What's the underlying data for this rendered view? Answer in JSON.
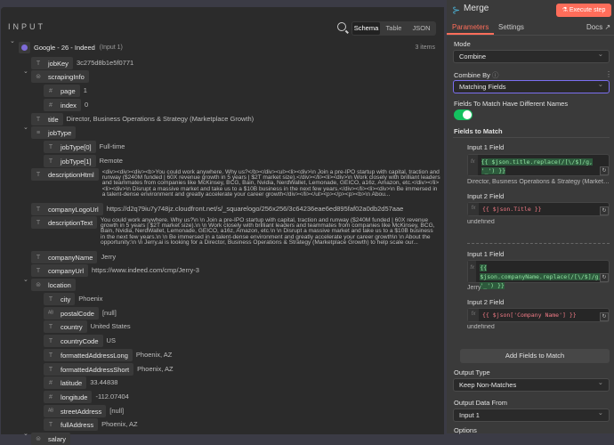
{
  "input": {
    "title": "INPUT",
    "views": [
      "Schema",
      "Table",
      "JSON"
    ],
    "active_view": "Schema",
    "source": {
      "name": "Google - 26 - Indeed",
      "tag": "(Input 1)",
      "count": "3 items"
    },
    "fields": [
      {
        "key": "jobKey",
        "type": "T",
        "value": "3c275d8b1e5f0771",
        "depth": 0
      },
      {
        "key": "scrapingInfo",
        "type": "obj",
        "value": "",
        "depth": 0,
        "expanded": true
      },
      {
        "key": "page",
        "type": "#",
        "value": "1",
        "depth": 1
      },
      {
        "key": "index",
        "type": "#",
        "value": "0",
        "depth": 1
      },
      {
        "key": "title",
        "type": "T",
        "value": "Director, Business Operations & Strategy (Marketplace Growth)",
        "depth": 0
      },
      {
        "key": "jobType",
        "type": "arr",
        "value": "",
        "depth": 0,
        "expanded": true
      },
      {
        "key": "jobType[0]",
        "type": "T",
        "value": "Full-time",
        "depth": 1
      },
      {
        "key": "jobType[1]",
        "type": "T",
        "value": "Remote",
        "depth": 1
      },
      {
        "key": "descriptionHtml",
        "type": "T",
        "value": "<div><div><div><b>You could work anywhere. Why us?</b></div><ul><li><div>\\n Join a pre-IPO startup with capital, traction and runway ($240M funded | 60X revenue growth in 5 years | $2T market size).</div></li><li><div>\\n Work closely with brilliant leaders and teammates from companies like McKinsey, BCG, Bain, Nvidia, NerdWallet, Lemonade, GEICO, a16z, Amazon, etc.</div></li><li><div>\\n Disrupt a massive market and take us to a $10B business in the next few years.</div></li><li><div>\\n Be immersed in a talent-dense environment and greatly accelerate your career growth</div></li></ul><p></p><p><b>\\n Abou...",
        "depth": 0
      },
      {
        "key": "companyLogoUrl",
        "type": "T",
        "value": "https://d2q79iu7y748jz.cloudfront.net/s/_squarelogo/256x256/3c64236eae6ed895faf02a0db2d57aae",
        "depth": 0
      },
      {
        "key": "descriptionText",
        "type": "T",
        "value": "You could work anywhere. Why us?\\n \\n Join a pre-IPO startup with capital, traction and runway ($240M funded | 60X revenue growth in 5 years | $2T market size).\\n \\n Work closely with brilliant leaders and teammates from companies like McKinsey, BCG, Bain, Nvidia, NerdWallet, Lemonade, GEICO, a16z, Amazon, etc.\\n \\n Disrupt a massive market and take us to a $10B business in the next few years.\\n \\n Be immersed in a talent-dense environment and greatly accelerate your career growth\\n \\n About the opportunity:\\n \\n Jerry.ai is looking for a Director, Business Operations & Strategy (Marketplace Growth) to help scale our...",
        "depth": 0
      },
      {
        "key": "companyName",
        "type": "T",
        "value": "Jerry",
        "depth": 0
      },
      {
        "key": "companyUrl",
        "type": "T",
        "value": "https://www.indeed.com/cmp/Jerry-3",
        "depth": 0
      },
      {
        "key": "location",
        "type": "obj",
        "value": "",
        "depth": 0,
        "expanded": true
      },
      {
        "key": "city",
        "type": "T",
        "value": "Phoenix",
        "depth": 1
      },
      {
        "key": "postalCode",
        "type": "AB",
        "value": "[null]",
        "depth": 1
      },
      {
        "key": "country",
        "type": "T",
        "value": "United States",
        "depth": 1
      },
      {
        "key": "countryCode",
        "type": "T",
        "value": "US",
        "depth": 1
      },
      {
        "key": "formattedAddressLong",
        "type": "T",
        "value": "Phoenix, AZ",
        "depth": 1
      },
      {
        "key": "formattedAddressShort",
        "type": "T",
        "value": "Phoenix, AZ",
        "depth": 1
      },
      {
        "key": "latitude",
        "type": "#",
        "value": "33.44838",
        "depth": 1
      },
      {
        "key": "longitude",
        "type": "#",
        "value": "-112.07404",
        "depth": 1
      },
      {
        "key": "streetAddress",
        "type": "AB",
        "value": "[null]",
        "depth": 1
      },
      {
        "key": "fullAddress",
        "type": "T",
        "value": "Phoenix, AZ",
        "depth": 1
      },
      {
        "key": "salary",
        "type": "obj",
        "value": "",
        "depth": 0,
        "expanded": true
      }
    ]
  },
  "node": {
    "title": "Merge",
    "execute_label": "Execute step",
    "tabs": [
      "Parameters",
      "Settings"
    ],
    "active_tab": "Parameters",
    "docs_label": "Docs",
    "mode": {
      "label": "Mode",
      "value": "Combine"
    },
    "combine_by": {
      "label": "Combine By",
      "value": "Matching Fields"
    },
    "different_names": {
      "label": "Fields To Match Have Different Names",
      "enabled": true
    },
    "fields_to_match": {
      "label": "Fields to Match",
      "pairs": [
        {
          "input1_label": "Input 1 Field",
          "input1_expr": "{{ $json.title.replace(/[\\/$]/g, '_') }}",
          "input1_result": "Director, Business Operations & Strategy (Marketplace Growth)",
          "input2_label": "Input 2 Field",
          "input2_expr": "{{ $json.Title }}",
          "input2_result": "undefined"
        },
        {
          "input1_label": "Input 1 Field",
          "input1_expr": "{{ $json.companyName.replace(/[\\/$]/g, '_') }}",
          "input1_result": "Jerry",
          "input2_label": "Input 2 Field",
          "input2_expr": "{{ $json['Company Name'] }}",
          "input2_result": "undefined"
        }
      ]
    },
    "add_fields_label": "Add Fields to Match",
    "output_type": {
      "label": "Output Type",
      "value": "Keep Non-Matches"
    },
    "output_data_from": {
      "label": "Output Data From",
      "value": "Input 1"
    },
    "options_label": "Options",
    "colors": {
      "accent": "#ff6d5a",
      "toggle": "#13c15f",
      "focus": "#7b6ff0"
    }
  }
}
